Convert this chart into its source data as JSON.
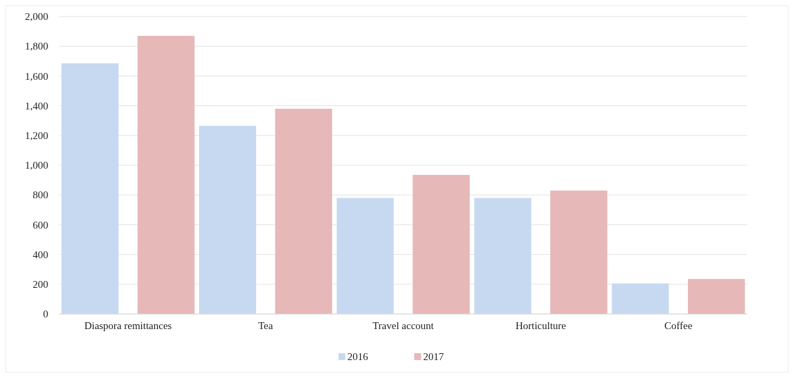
{
  "chart_data": {
    "type": "bar",
    "categories": [
      "Diaspora remittances",
      "Tea",
      "Travel account",
      "Horticulture",
      "Coffee"
    ],
    "series": [
      {
        "name": "2016",
        "color": "#c6d9f0",
        "values": [
          1685,
          1265,
          780,
          780,
          205
        ]
      },
      {
        "name": "2017",
        "color": "#e6b8b7",
        "values": [
          1870,
          1380,
          935,
          830,
          235
        ]
      }
    ],
    "ylim": [
      0,
      2000
    ],
    "yticks": [
      {
        "value": 0,
        "label": "0"
      },
      {
        "value": 200,
        "label": "200"
      },
      {
        "value": 400,
        "label": "400"
      },
      {
        "value": 600,
        "label": "600"
      },
      {
        "value": 800,
        "label": "800"
      },
      {
        "value": 1000,
        "label": "1,000"
      },
      {
        "value": 1200,
        "label": "1,200"
      },
      {
        "value": 1400,
        "label": "1,400"
      },
      {
        "value": 1600,
        "label": "1,600"
      },
      {
        "value": 1800,
        "label": "1,800"
      },
      {
        "value": 2000,
        "label": "2,000"
      }
    ],
    "grid": "y",
    "legend": "bottom"
  }
}
